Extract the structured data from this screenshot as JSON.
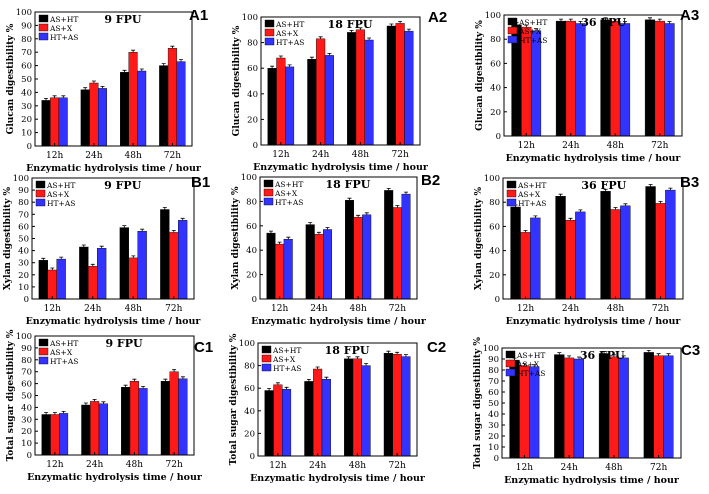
{
  "colors": {
    "AS+HT": "#000000",
    "AS+X": "#ff1a1a",
    "HT+AS": "#3333ff",
    "axis": "#000000"
  },
  "chart_data": [
    {
      "id": "A1",
      "type": "bar",
      "panel_label": "A1",
      "title": "9 FPU",
      "ylabel": "Glucan digestibility %",
      "xlabel": "Enzymatic hydrolysis time / hour",
      "categories": [
        "12h",
        "24h",
        "48h",
        "72h"
      ],
      "ylim": [
        0,
        100
      ],
      "yticks": [
        0,
        10,
        20,
        30,
        40,
        50,
        60,
        70,
        80,
        90,
        100
      ],
      "legend_position": "top-left",
      "series": [
        {
          "name": "AS+HT",
          "values": [
            34,
            42,
            55,
            60
          ]
        },
        {
          "name": "AS+X",
          "values": [
            36,
            47,
            70,
            73
          ]
        },
        {
          "name": "HT+AS",
          "values": [
            36,
            43,
            56,
            63
          ]
        }
      ]
    },
    {
      "id": "A2",
      "type": "bar",
      "panel_label": "A2",
      "title": "18 FPU",
      "ylabel": "Glucan digestibility %",
      "xlabel": "Enzymatic hydrolysis time / hour",
      "categories": [
        "12h",
        "24h",
        "48h",
        "72h"
      ],
      "ylim": [
        0,
        100
      ],
      "yticks": [
        0,
        20,
        40,
        60,
        80,
        100
      ],
      "legend_position": "top-left",
      "series": [
        {
          "name": "AS+HT",
          "values": [
            60,
            67,
            88,
            93
          ]
        },
        {
          "name": "AS+X",
          "values": [
            68,
            83,
            90,
            95
          ]
        },
        {
          "name": "HT+AS",
          "values": [
            61,
            70,
            82,
            89
          ]
        }
      ]
    },
    {
      "id": "A3",
      "type": "bar",
      "panel_label": "A3",
      "title": "36 FPU",
      "ylabel": "Glucan digestibility %",
      "xlabel": "Enzymatic hydrolysis time / hour",
      "categories": [
        "12h",
        "24h",
        "48h",
        "72h"
      ],
      "ylim": [
        0,
        100
      ],
      "yticks": [
        0,
        20,
        40,
        60,
        80,
        100
      ],
      "legend_position": "top-left",
      "series": [
        {
          "name": "AS+HT",
          "values": [
            92,
            95,
            96,
            96
          ]
        },
        {
          "name": "AS+X",
          "values": [
            90,
            95,
            95,
            95
          ]
        },
        {
          "name": "HT+AS",
          "values": [
            87,
            93,
            93,
            93
          ]
        }
      ]
    },
    {
      "id": "B1",
      "type": "bar",
      "panel_label": "B1",
      "title": "9 FPU",
      "ylabel": "Xylan digestibility %",
      "xlabel": "Enzymatic hydrolysis time / hour",
      "categories": [
        "12h",
        "24h",
        "48h",
        "72h"
      ],
      "ylim": [
        0,
        100
      ],
      "yticks": [
        0,
        10,
        20,
        30,
        40,
        50,
        60,
        70,
        80,
        90,
        100
      ],
      "legend_position": "top-left",
      "series": [
        {
          "name": "AS+HT",
          "values": [
            32,
            43,
            59,
            74
          ]
        },
        {
          "name": "AS+X",
          "values": [
            24,
            27,
            34,
            55
          ]
        },
        {
          "name": "HT+AS",
          "values": [
            33,
            42,
            56,
            65
          ]
        }
      ]
    },
    {
      "id": "B2",
      "type": "bar",
      "panel_label": "B2",
      "title": "18 FPU",
      "ylabel": "Xylan digestibility %",
      "xlabel": "Enzymatic hydrolysis time / hour",
      "categories": [
        "12h",
        "24h",
        "48h",
        "72h"
      ],
      "ylim": [
        0,
        100
      ],
      "yticks": [
        0,
        20,
        40,
        60,
        80,
        100
      ],
      "legend_position": "top-left",
      "series": [
        {
          "name": "AS+HT",
          "values": [
            54,
            61,
            81,
            89
          ]
        },
        {
          "name": "AS+X",
          "values": [
            45,
            53,
            67,
            75
          ]
        },
        {
          "name": "HT+AS",
          "values": [
            49,
            57,
            69,
            86
          ]
        }
      ]
    },
    {
      "id": "B3",
      "type": "bar",
      "panel_label": "B3",
      "title": "36 FPU",
      "ylabel": "Xylan digestibility %",
      "xlabel": "Enzymatic hydrolysis time / hour",
      "categories": [
        "12h",
        "24h",
        "48h",
        "72h"
      ],
      "ylim": [
        0,
        100
      ],
      "yticks": [
        0,
        20,
        40,
        60,
        80,
        100
      ],
      "legend_position": "top-left",
      "series": [
        {
          "name": "AS+HT",
          "values": [
            76,
            85,
            89,
            93
          ]
        },
        {
          "name": "AS+X",
          "values": [
            55,
            65,
            74,
            79
          ]
        },
        {
          "name": "HT+AS",
          "values": [
            67,
            72,
            77,
            90
          ]
        }
      ]
    },
    {
      "id": "C1",
      "type": "bar",
      "panel_label": "C1",
      "title": "9 FPU",
      "ylabel": "Total sugar digestibility %",
      "xlabel": "Enzymatic hydrolysis time / hour",
      "categories": [
        "12h",
        "24h",
        "48h",
        "72h"
      ],
      "ylim": [
        0,
        100
      ],
      "yticks": [
        0,
        10,
        20,
        30,
        40,
        50,
        60,
        70,
        80,
        90,
        100
      ],
      "legend_position": "top-left",
      "series": [
        {
          "name": "AS+HT",
          "values": [
            34,
            42,
            57,
            62
          ]
        },
        {
          "name": "AS+X",
          "values": [
            34,
            45,
            62,
            70
          ]
        },
        {
          "name": "HT+AS",
          "values": [
            35,
            43,
            56,
            64
          ]
        }
      ]
    },
    {
      "id": "C2",
      "type": "bar",
      "panel_label": "C2",
      "title": "18 FPU",
      "ylabel": "Total sugar digestibility %",
      "xlabel": "Enzymatic hydrolysis time / hour",
      "categories": [
        "12h",
        "24h",
        "48h",
        "72h"
      ],
      "ylim": [
        0,
        100
      ],
      "yticks": [
        0,
        20,
        40,
        60,
        80,
        100
      ],
      "legend_position": "top-left",
      "series": [
        {
          "name": "AS+HT",
          "values": [
            58,
            66,
            86,
            91
          ]
        },
        {
          "name": "AS+X",
          "values": [
            63,
            77,
            86,
            90
          ]
        },
        {
          "name": "HT+AS",
          "values": [
            59,
            68,
            80,
            88
          ]
        }
      ]
    },
    {
      "id": "C3",
      "type": "bar",
      "panel_label": "C3",
      "title": "36 FPU",
      "ylabel": "Total sugar digestibility %",
      "xlabel": "Enzymatic hydrolysis time / hour",
      "categories": [
        "12h",
        "24h",
        "48h",
        "72h"
      ],
      "ylim": [
        0,
        100
      ],
      "yticks": [
        0,
        10,
        20,
        30,
        40,
        50,
        60,
        70,
        80,
        90,
        100
      ],
      "legend_position": "top-left",
      "series": [
        {
          "name": "AS+HT",
          "values": [
            89,
            94,
            95,
            96
          ]
        },
        {
          "name": "AS+X",
          "values": [
            84,
            91,
            92,
            93
          ]
        },
        {
          "name": "HT+AS",
          "values": [
            83,
            90,
            91,
            93
          ]
        }
      ]
    }
  ]
}
